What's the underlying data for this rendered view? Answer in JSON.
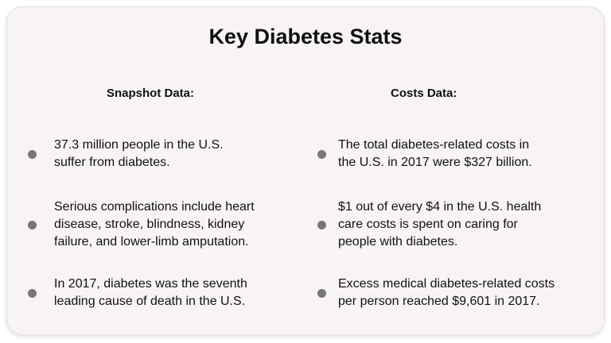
{
  "title": "Key Diabetes Stats",
  "columns": [
    {
      "heading": "Snapshot Data:",
      "items": [
        {
          "lines": [
            "37.3 million people in the U.S.",
            "suffer from diabetes."
          ]
        },
        {
          "lines": [
            "Serious complications include heart",
            "disease, stroke, blindness, kidney",
            "failure, and lower-limb amputation."
          ]
        },
        {
          "lines": [
            "In 2017, diabetes was the seventh",
            "leading cause of death in the U.S."
          ]
        }
      ]
    },
    {
      "heading": "Costs Data:",
      "items": [
        {
          "lines": [
            "The total diabetes-related costs in",
            "the U.S. in 2017 were $327 billion."
          ]
        },
        {
          "lines": [
            "$1 out of every $4 in the U.S. health",
            "care costs is spent on caring for",
            "people with diabetes."
          ]
        },
        {
          "lines": [
            "Excess medical diabetes-related costs",
            "per person reached $9,601 in 2017."
          ]
        }
      ]
    }
  ]
}
